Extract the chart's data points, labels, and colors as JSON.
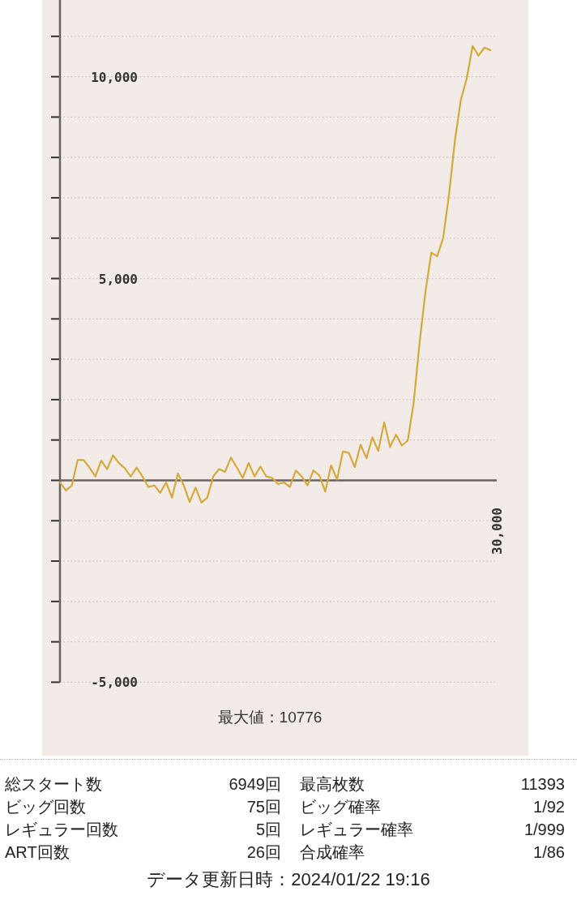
{
  "chart_data": [
    {
      "type": "line",
      "annotations": [
        "最大値：10776",
        "30,000"
      ],
      "categories": [
        null,
        null,
        null,
        null,
        null,
        null,
        null,
        null,
        null,
        null,
        null,
        null,
        null,
        null,
        null,
        null,
        null,
        null,
        null,
        null,
        null,
        null,
        null,
        null,
        null,
        null,
        null,
        null,
        null,
        null,
        null,
        null,
        null,
        null,
        null,
        null,
        null,
        null,
        null,
        null,
        null,
        null,
        null,
        null,
        null,
        null,
        null,
        null,
        null,
        null,
        null,
        null,
        null,
        null,
        null,
        null,
        null,
        null,
        null,
        null,
        null,
        null,
        null,
        null,
        null,
        null,
        null,
        null,
        null,
        null,
        null,
        null,
        null,
        null
      ],
      "ylim": [
        -5000,
        11900
      ],
      "yticks": [
        {
          "value": -5000,
          "label": "-5,000"
        },
        {
          "value": -4000,
          "label": null
        },
        {
          "value": -3000,
          "label": null
        },
        {
          "value": -2000,
          "label": null
        },
        {
          "value": -1000,
          "label": null
        },
        {
          "value": 0,
          "label": null
        },
        {
          "value": 1000,
          "label": null
        },
        {
          "value": 2000,
          "label": null
        },
        {
          "value": 3000,
          "label": null
        },
        {
          "value": 4000,
          "label": null
        },
        {
          "value": 5000,
          "label": "5,000"
        },
        {
          "value": 6000,
          "label": null
        },
        {
          "value": 7000,
          "label": null
        },
        {
          "value": 8000,
          "label": null
        },
        {
          "value": 9000,
          "label": null
        },
        {
          "value": 10000,
          "label": "10,000"
        },
        {
          "value": 11000,
          "label": null
        }
      ],
      "grid": "y",
      "marker": "none",
      "line_style": "solid",
      "series": [
        {
          "color": "#d4aa3c",
          "values": [
            -50,
            -250,
            -130,
            505,
            505,
            320,
            97,
            490,
            280,
            620,
            430,
            300,
            97,
            320,
            97,
            -165,
            -125,
            -310,
            -50,
            -425,
            170,
            -125,
            -535,
            -180,
            -550,
            -425,
            97,
            280,
            210,
            565,
            320,
            60,
            430,
            97,
            340,
            97,
            60,
            -90,
            -50,
            -165,
            245,
            97,
            -125,
            245,
            120,
            -275,
            370,
            22,
            716,
            682,
            328,
            883,
            549,
            1064,
            729,
            1438,
            830,
            1130,
            863,
            983,
            1920,
            3400,
            4670,
            5640,
            5550,
            6000,
            7080,
            8420,
            9420,
            9950,
            10760,
            10520,
            10720,
            10660
          ]
        }
      ]
    },
    {
      "type": "other",
      "annotations": [
        "総スタート数",
        "6949回",
        "最高枚数",
        "11393",
        "ビッグ回数",
        "75回",
        "ビッグ確率",
        "1/92",
        "レギュラー回数",
        "5回",
        "レギュラー確率",
        "1/999",
        "ART回数",
        "26回",
        "合成確率",
        "1/86",
        "データ更新日時：2024/01/22 19:16"
      ]
    }
  ]
}
